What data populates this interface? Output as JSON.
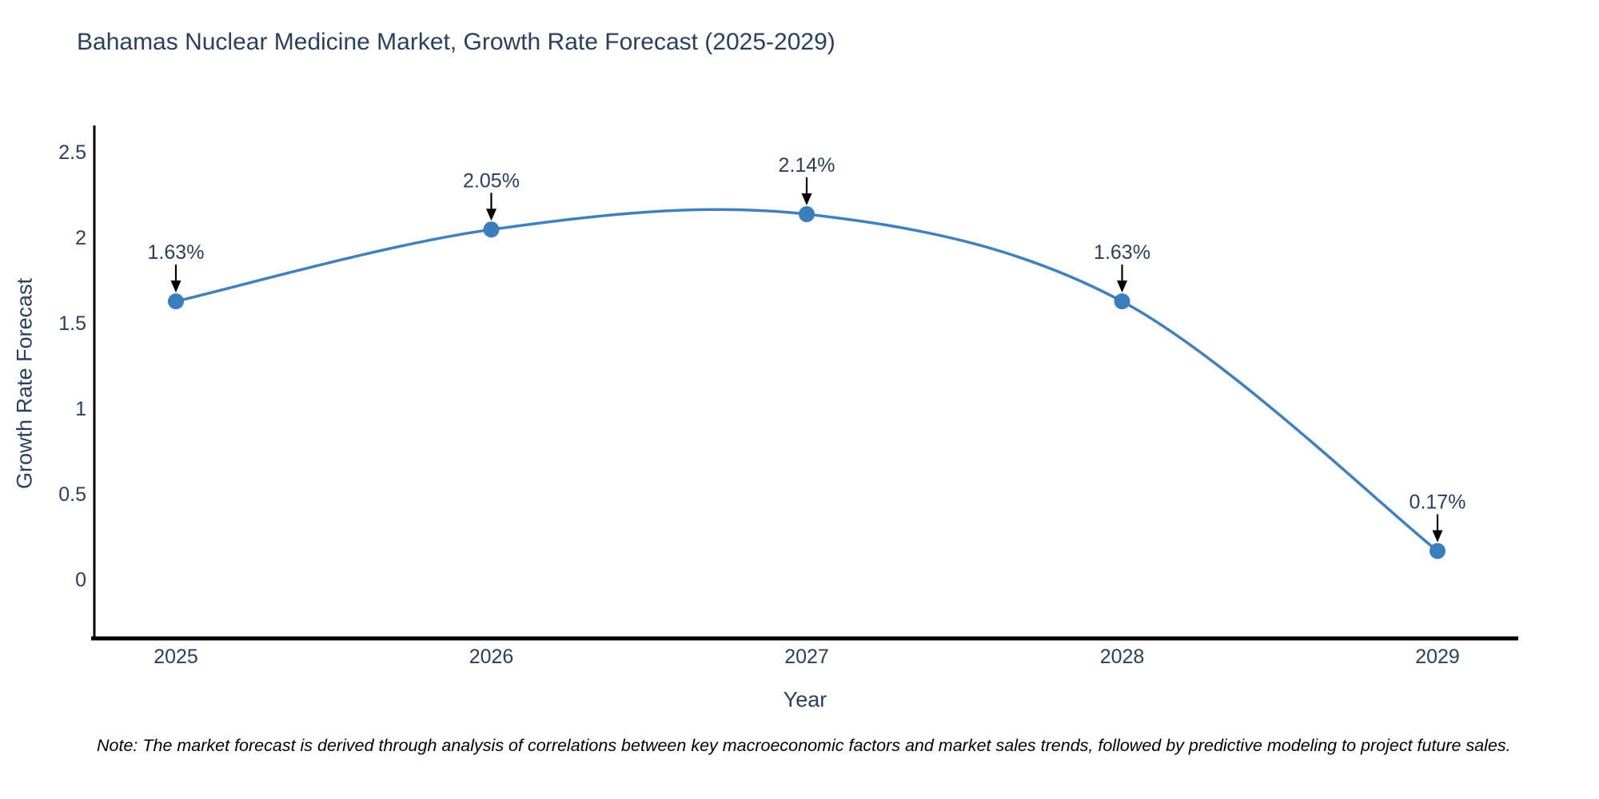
{
  "chart": {
    "title": "Bahamas Nuclear Medicine Market, Growth Rate Forecast (2025-2029)",
    "xlabel": "Year",
    "ylabel": "Growth Rate Forecast",
    "note": "Note: The market forecast is derived through analysis of correlations between key macroeconomic factors and market sales trends, followed by predictive modeling to project future sales."
  },
  "chart_data": {
    "type": "line",
    "line_shape": "spline",
    "title": "Bahamas Nuclear Medicine Market, Growth Rate Forecast (2025-2029)",
    "xlabel": "Year",
    "ylabel": "Growth Rate Forecast",
    "categories": [
      "2025",
      "2026",
      "2027",
      "2028",
      "2029"
    ],
    "values": [
      1.63,
      2.05,
      2.14,
      1.63,
      0.17
    ],
    "point_labels": [
      "1.63%",
      "2.05%",
      "2.14%",
      "1.63%",
      "0.17%"
    ],
    "yticks": [
      0,
      0.5,
      1,
      1.5,
      2,
      2.5
    ],
    "ytick_labels": [
      "0",
      "0.5",
      "1",
      "1.5",
      "2",
      "2.5"
    ],
    "ylim": [
      -0.35,
      2.65
    ],
    "grid": false,
    "legend": "none",
    "annotations": "arrow-down-to-point",
    "colors": {
      "line": "#4080bf",
      "marker": "#3a7ebd",
      "axis": "#000000",
      "text": "#2a3f5f",
      "arrow": "#000000",
      "background": "#ffffff"
    }
  }
}
